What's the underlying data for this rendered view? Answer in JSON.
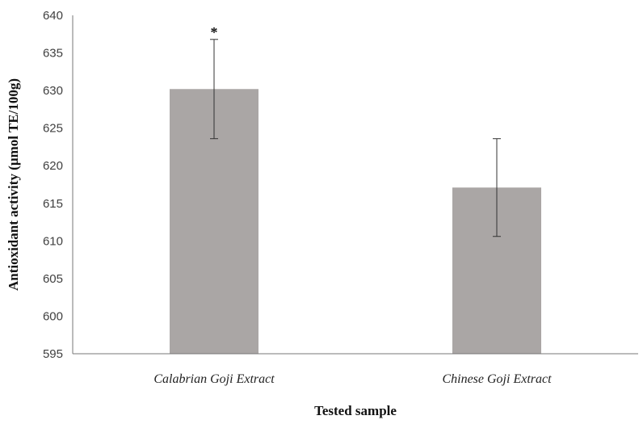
{
  "chart_data": {
    "type": "bar",
    "title": "",
    "xlabel": "Tested sample",
    "ylabel": "Antioxidant activity (µmol TE/100g)",
    "categories": [
      "Calabrian Goji Extract",
      "Chinese Goji Extract"
    ],
    "values": [
      630.2,
      617.1
    ],
    "error": [
      6.6,
      6.5
    ],
    "annotations": [
      "*",
      ""
    ],
    "ylim": [
      595,
      640
    ],
    "yticks": [
      595,
      600,
      605,
      610,
      615,
      620,
      625,
      630,
      635,
      640
    ],
    "grid": false,
    "legend": "none",
    "colors": {
      "bar": "#aaa6a5",
      "axis": "#777777",
      "error": "#333333"
    }
  }
}
